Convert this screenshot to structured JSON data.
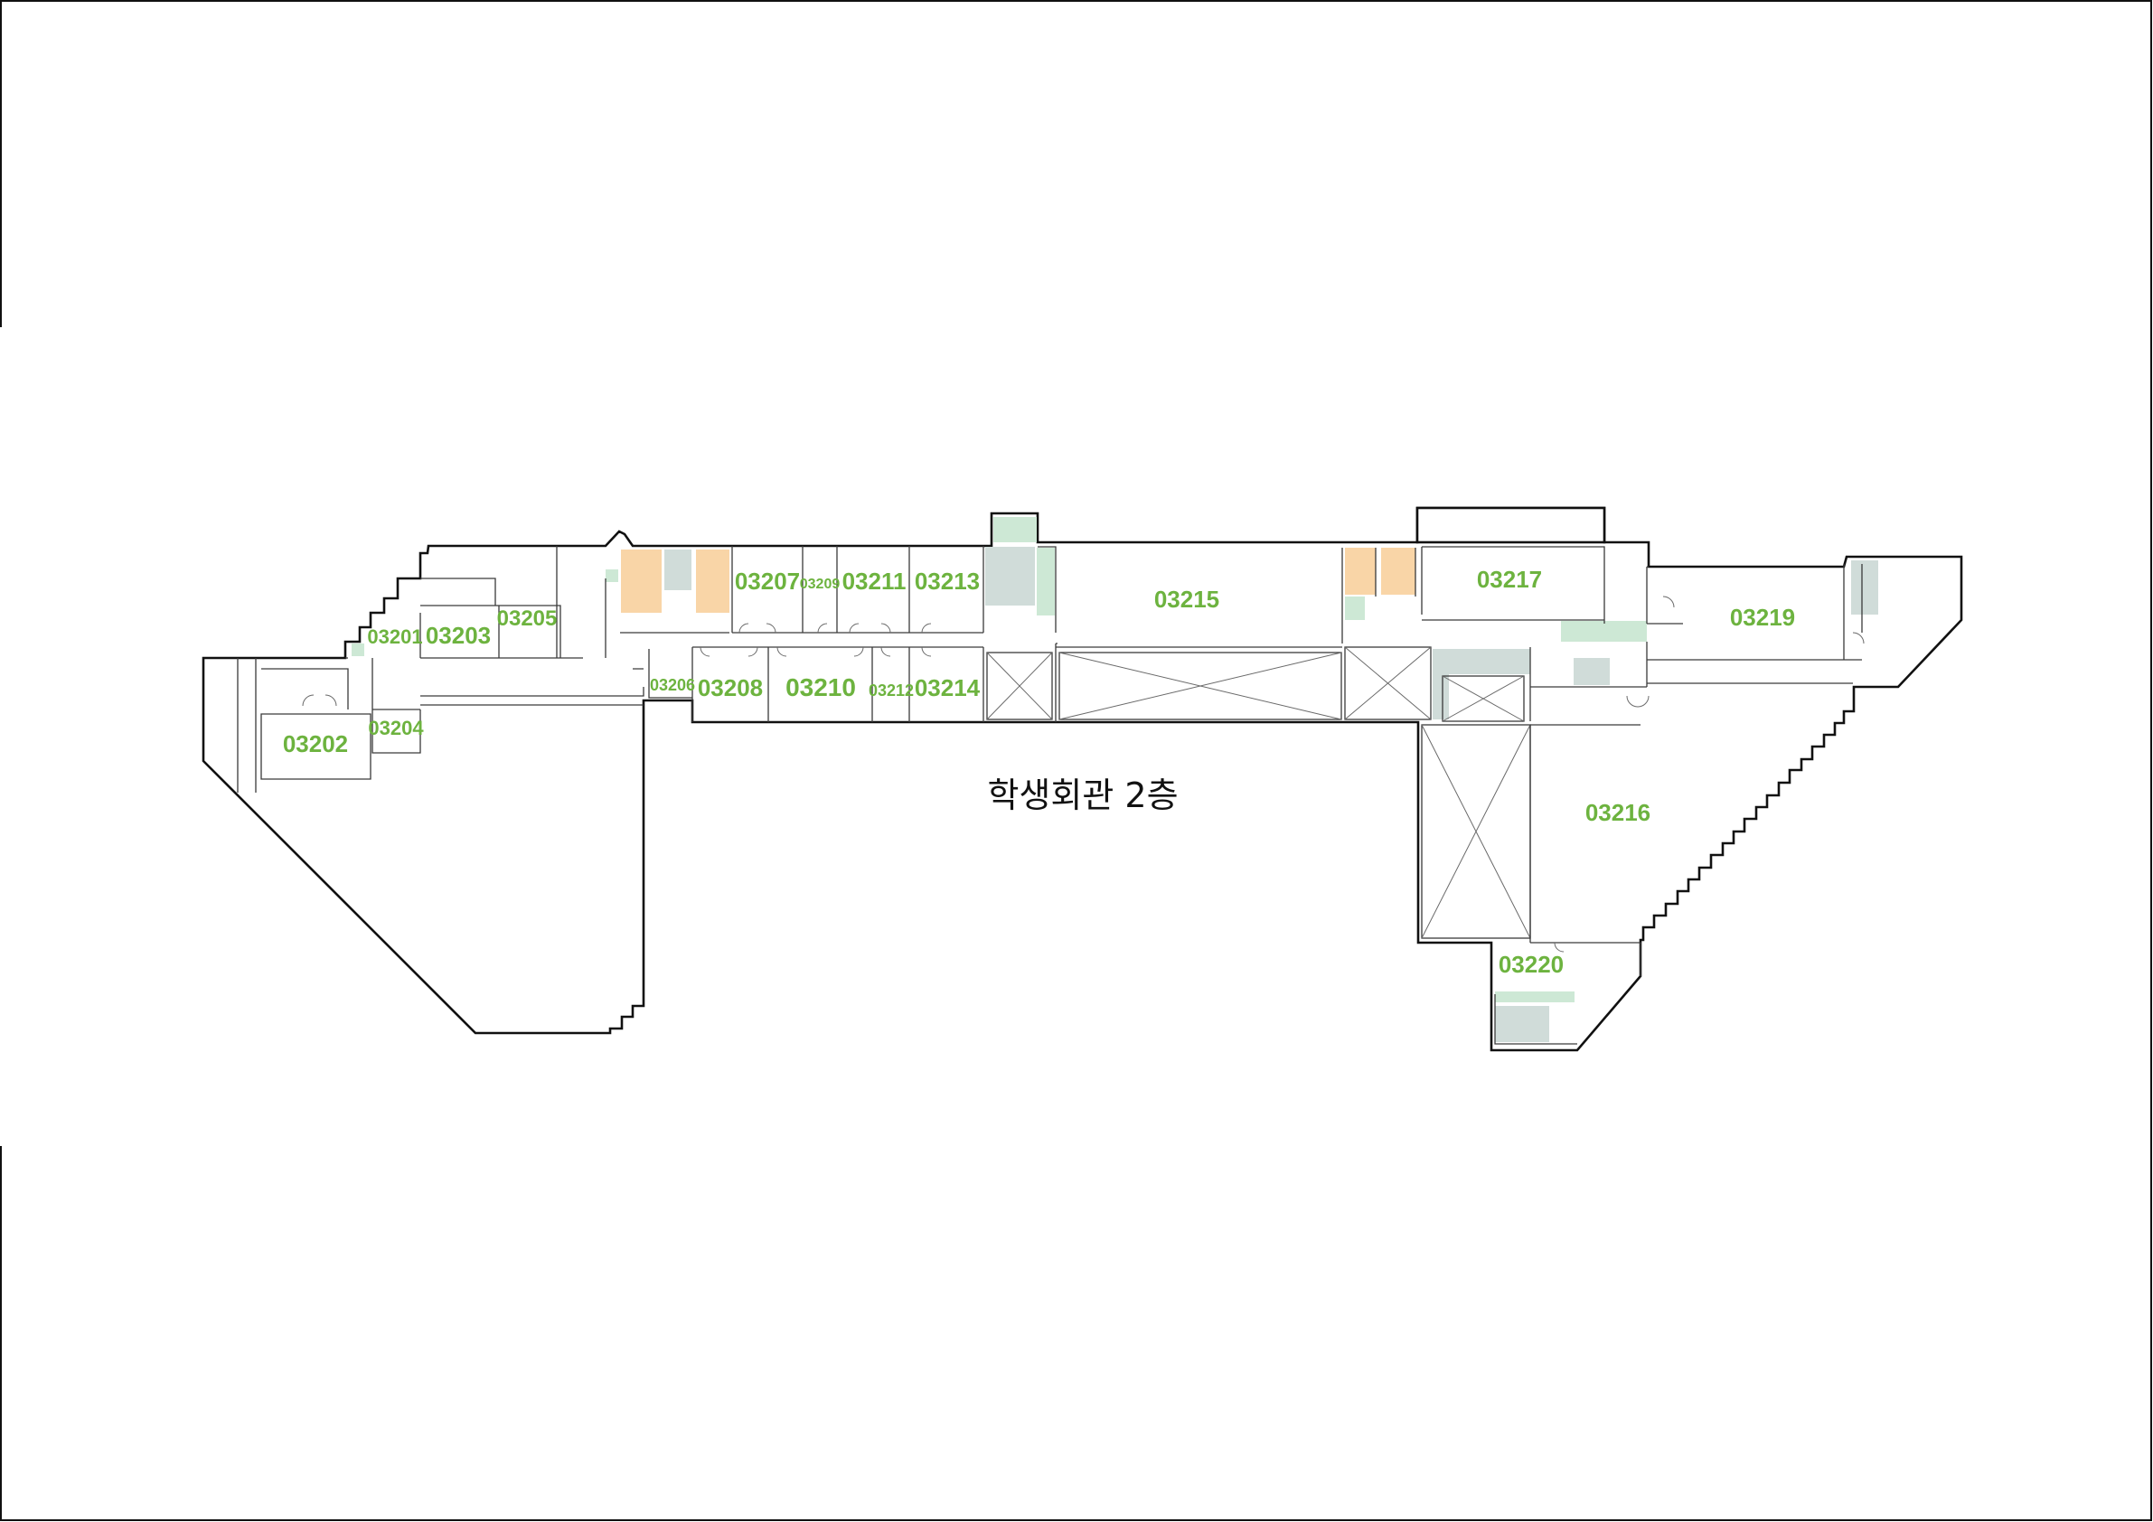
{
  "floor_title": "학생회관 2층",
  "rooms": {
    "r03201": "03201",
    "r03202": "03202",
    "r03203": "03203",
    "r03204": "03204",
    "r03205": "03205",
    "r03206": "03206",
    "r03207": "03207",
    "r03208": "03208",
    "r03209": "03209",
    "r03210": "03210",
    "r03211": "03211",
    "r03212": "03212",
    "r03213": "03213",
    "r03214": "03214",
    "r03215": "03215",
    "r03216": "03216",
    "r03217": "03217",
    "r03219": "03219",
    "r03220": "03220"
  },
  "colors": {
    "room_label": "#6db33f",
    "restroom": "#f9d5a7",
    "stair": "#d0dcd9",
    "utility": "#cde8d5",
    "wall": "#111111"
  }
}
